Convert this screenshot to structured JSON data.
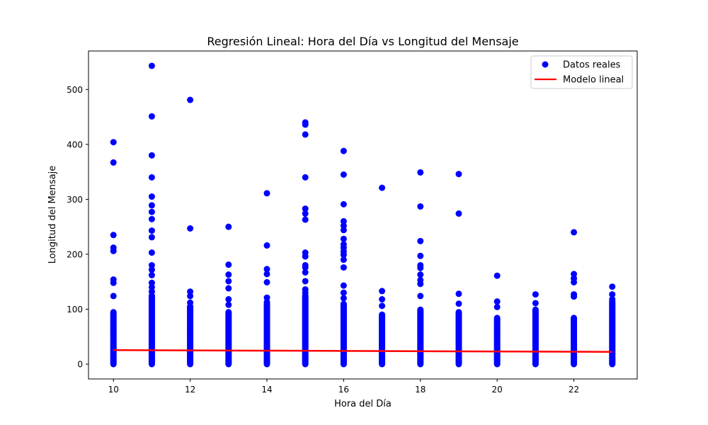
{
  "colors": {
    "points": "#0000ff",
    "line": "#ff0000",
    "axis": "#000000",
    "legend_border": "#cccccc"
  },
  "chart_data": {
    "type": "scatter",
    "title": "Regresión Lineal: Hora del Día vs Longitud del Mensaje",
    "xlabel": "Hora del Día",
    "ylabel": "Longitud del Mensaje",
    "xlim": [
      9.35,
      23.65
    ],
    "ylim": [
      -27,
      570
    ],
    "xticks": [
      10,
      12,
      14,
      16,
      18,
      20,
      22
    ],
    "yticks": [
      0,
      100,
      200,
      300,
      400,
      500
    ],
    "grid": false,
    "legend": {
      "position": "top-right",
      "entries": [
        "Datos reales",
        "Modelo lineal"
      ]
    },
    "series": [
      {
        "name": "Datos reales",
        "kind": "scatter",
        "color": "#0000ff",
        "dense_max": {
          "10": 95,
          "11": 125,
          "12": 105,
          "13": 95,
          "14": 110,
          "15": 125,
          "16": 110,
          "17": 90,
          "18": 100,
          "19": 95,
          "20": 85,
          "21": 100,
          "22": 85,
          "23": 115
        },
        "points": [
          {
            "x": 10,
            "y": 404
          },
          {
            "x": 10,
            "y": 367
          },
          {
            "x": 10,
            "y": 235
          },
          {
            "x": 10,
            "y": 212
          },
          {
            "x": 10,
            "y": 206
          },
          {
            "x": 10,
            "y": 154
          },
          {
            "x": 10,
            "y": 148
          },
          {
            "x": 10,
            "y": 124
          },
          {
            "x": 11,
            "y": 543
          },
          {
            "x": 11,
            "y": 451
          },
          {
            "x": 11,
            "y": 380
          },
          {
            "x": 11,
            "y": 340
          },
          {
            "x": 11,
            "y": 305
          },
          {
            "x": 11,
            "y": 289
          },
          {
            "x": 11,
            "y": 277
          },
          {
            "x": 11,
            "y": 264
          },
          {
            "x": 11,
            "y": 243
          },
          {
            "x": 11,
            "y": 231
          },
          {
            "x": 11,
            "y": 203
          },
          {
            "x": 11,
            "y": 180
          },
          {
            "x": 11,
            "y": 172
          },
          {
            "x": 11,
            "y": 162
          },
          {
            "x": 11,
            "y": 148
          },
          {
            "x": 11,
            "y": 140
          },
          {
            "x": 11,
            "y": 132
          },
          {
            "x": 12,
            "y": 481
          },
          {
            "x": 12,
            "y": 247
          },
          {
            "x": 12,
            "y": 132
          },
          {
            "x": 12,
            "y": 124
          },
          {
            "x": 12,
            "y": 112
          },
          {
            "x": 13,
            "y": 250
          },
          {
            "x": 13,
            "y": 181
          },
          {
            "x": 13,
            "y": 163
          },
          {
            "x": 13,
            "y": 151
          },
          {
            "x": 13,
            "y": 138
          },
          {
            "x": 13,
            "y": 118
          },
          {
            "x": 13,
            "y": 108
          },
          {
            "x": 14,
            "y": 311
          },
          {
            "x": 14,
            "y": 216
          },
          {
            "x": 14,
            "y": 173
          },
          {
            "x": 14,
            "y": 164
          },
          {
            "x": 14,
            "y": 149
          },
          {
            "x": 14,
            "y": 121
          },
          {
            "x": 14,
            "y": 113
          },
          {
            "x": 15,
            "y": 440
          },
          {
            "x": 15,
            "y": 436
          },
          {
            "x": 15,
            "y": 418
          },
          {
            "x": 15,
            "y": 340
          },
          {
            "x": 15,
            "y": 283
          },
          {
            "x": 15,
            "y": 274
          },
          {
            "x": 15,
            "y": 263
          },
          {
            "x": 15,
            "y": 203
          },
          {
            "x": 15,
            "y": 196
          },
          {
            "x": 15,
            "y": 180
          },
          {
            "x": 15,
            "y": 176
          },
          {
            "x": 15,
            "y": 167
          },
          {
            "x": 15,
            "y": 151
          },
          {
            "x": 15,
            "y": 136
          },
          {
            "x": 15,
            "y": 130
          },
          {
            "x": 16,
            "y": 388
          },
          {
            "x": 16,
            "y": 345
          },
          {
            "x": 16,
            "y": 291
          },
          {
            "x": 16,
            "y": 260
          },
          {
            "x": 16,
            "y": 252
          },
          {
            "x": 16,
            "y": 244
          },
          {
            "x": 16,
            "y": 228
          },
          {
            "x": 16,
            "y": 218
          },
          {
            "x": 16,
            "y": 212
          },
          {
            "x": 16,
            "y": 205
          },
          {
            "x": 16,
            "y": 199
          },
          {
            "x": 16,
            "y": 190
          },
          {
            "x": 16,
            "y": 176
          },
          {
            "x": 16,
            "y": 143
          },
          {
            "x": 16,
            "y": 130
          },
          {
            "x": 16,
            "y": 120
          },
          {
            "x": 17,
            "y": 321
          },
          {
            "x": 17,
            "y": 133
          },
          {
            "x": 17,
            "y": 118
          },
          {
            "x": 17,
            "y": 106
          },
          {
            "x": 18,
            "y": 349
          },
          {
            "x": 18,
            "y": 287
          },
          {
            "x": 18,
            "y": 224
          },
          {
            "x": 18,
            "y": 197
          },
          {
            "x": 18,
            "y": 180
          },
          {
            "x": 18,
            "y": 175
          },
          {
            "x": 18,
            "y": 163
          },
          {
            "x": 18,
            "y": 153
          },
          {
            "x": 18,
            "y": 146
          },
          {
            "x": 18,
            "y": 124
          },
          {
            "x": 19,
            "y": 346
          },
          {
            "x": 19,
            "y": 274
          },
          {
            "x": 19,
            "y": 128
          },
          {
            "x": 19,
            "y": 110
          },
          {
            "x": 20,
            "y": 161
          },
          {
            "x": 20,
            "y": 114
          },
          {
            "x": 20,
            "y": 104
          },
          {
            "x": 21,
            "y": 127
          },
          {
            "x": 21,
            "y": 111
          },
          {
            "x": 22,
            "y": 240
          },
          {
            "x": 22,
            "y": 164
          },
          {
            "x": 22,
            "y": 156
          },
          {
            "x": 22,
            "y": 149
          },
          {
            "x": 22,
            "y": 127
          },
          {
            "x": 22,
            "y": 123
          },
          {
            "x": 23,
            "y": 141
          },
          {
            "x": 23,
            "y": 127
          },
          {
            "x": 23,
            "y": 118
          }
        ]
      },
      {
        "name": "Modelo lineal",
        "kind": "line",
        "color": "#ff0000",
        "x": [
          10,
          23
        ],
        "y": [
          25.5,
          22.3
        ]
      }
    ]
  }
}
